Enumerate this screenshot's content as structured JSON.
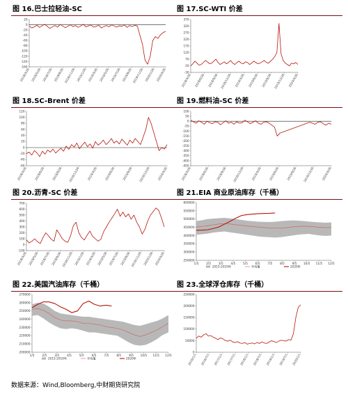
{
  "source": "数据来源：Wind,Bloomberg,中财期货研究院",
  "chart_data": [
    {
      "id": "fig16",
      "type": "line",
      "title": "图 16.巴士拉轻油-SC",
      "y_ticks": [
        20,
        0,
        -20,
        -40,
        -60,
        -80,
        -100,
        -120,
        -140,
        -160
      ],
      "ylim": [
        -160,
        20
      ],
      "x_ticks": [
        "2018/3/26",
        "2018/5/26",
        "2018/7/26",
        "2018/9/26",
        "2018/11/26",
        "2019/1/26",
        "2019/3/26",
        "2019/5/26",
        "2019/7/26",
        "2019/9/26",
        "2019/11/26",
        "2020/1/26",
        "2020/3/26"
      ],
      "reference_line": 0,
      "series": [
        {
          "color": "#b5150b",
          "values": [
            -5,
            -12,
            -8,
            -2,
            -10,
            -4,
            2,
            -6,
            -14,
            -8,
            -3,
            -9,
            1,
            -5,
            -11,
            -6,
            0,
            -7,
            -3,
            -10,
            -5,
            2,
            -8,
            -4,
            -1,
            -9,
            -6,
            -2,
            -12,
            -7,
            -3,
            -8,
            0,
            -5,
            -9,
            -4,
            -6,
            -1,
            -10,
            -3,
            -7,
            -2,
            -5,
            -40,
            -75,
            -135,
            -150,
            -120,
            -60,
            -45,
            -52,
            -38,
            -30,
            -25
          ]
        }
      ]
    },
    {
      "id": "fig17",
      "type": "line",
      "title": "图 17.SC-WTI 价差",
      "y_ticks": [
        370,
        320,
        270,
        220,
        170,
        120,
        70,
        20,
        -30
      ],
      "ylim": [
        -30,
        370
      ],
      "x_ticks": [
        "2018/3/26",
        "2018/6/26",
        "2018/9/26",
        "2018/12/26",
        "2019/3/26",
        "2019/6/26",
        "2019/9/26",
        "2019/12/26",
        "2020/3/26"
      ],
      "series": [
        {
          "color": "#b5150b",
          "values": [
            20,
            35,
            55,
            40,
            25,
            30,
            45,
            60,
            50,
            35,
            40,
            55,
            70,
            45,
            30,
            40,
            50,
            35,
            45,
            60,
            40,
            30,
            45,
            55,
            40,
            35,
            50,
            45,
            30,
            40,
            55,
            45,
            35,
            40,
            50,
            60,
            45,
            40,
            55,
            70,
            90,
            120,
            340,
            110,
            60,
            40,
            30,
            20,
            40,
            35,
            45,
            30
          ]
        }
      ]
    },
    {
      "id": "fig18",
      "type": "line",
      "title": "图 18.SC-Brent 价差",
      "y_ticks": [
        120,
        100,
        80,
        60,
        40,
        20,
        0,
        -20,
        -40,
        -60
      ],
      "ylim": [
        -60,
        120
      ],
      "x_ticks": [
        "2018/3/26",
        "2018/6/26",
        "2018/9/26",
        "2018/12/26",
        "2019/3/26",
        "2019/6/26",
        "2019/9/26",
        "2019/12/26",
        "2020/3/26"
      ],
      "reference_line": 0,
      "series": [
        {
          "color": "#b5150b",
          "values": [
            -20,
            -15,
            -25,
            -10,
            -18,
            -30,
            -12,
            -22,
            -8,
            -15,
            -5,
            -18,
            -10,
            -2,
            -12,
            5,
            -6,
            10,
            2,
            15,
            -4,
            8,
            18,
            3,
            12,
            -2,
            20,
            8,
            15,
            25,
            10,
            18,
            30,
            15,
            22,
            12,
            28,
            18,
            8,
            25,
            15,
            30,
            20,
            10,
            35,
            60,
            100,
            80,
            50,
            20,
            -10,
            0,
            -5,
            10
          ]
        }
      ]
    },
    {
      "id": "fig19",
      "type": "line",
      "title": "图 19.燃料油-SC 价差",
      "y_ticks": [
        100,
        50,
        0,
        -50,
        -100,
        -150,
        -200,
        -250,
        -300,
        -350,
        -400,
        -450
      ],
      "ylim": [
        -450,
        100
      ],
      "x_ticks": [
        "2018/3/26",
        "2018/6/26",
        "2018/9/26",
        "2018/12/26",
        "2019/3/26",
        "2019/6/26",
        "2019/9/26",
        "2019/12/26",
        "2020/3/26"
      ],
      "reference_line": 0,
      "series": [
        {
          "color": "#b5150b",
          "values": [
            10,
            -5,
            -20,
            5,
            -10,
            -30,
            0,
            -15,
            -25,
            -5,
            -10,
            -35,
            -15,
            5,
            -20,
            -10,
            -30,
            -5,
            -20,
            -15,
            10,
            -5,
            -25,
            -10,
            5,
            -20,
            -30,
            -10,
            -5,
            -20,
            -40,
            -60,
            -150,
            -120,
            -110,
            -100,
            -90,
            -80,
            -70,
            -60,
            -50,
            -40,
            -30,
            -20,
            -10,
            -20,
            -30,
            -10,
            -5,
            -25,
            -40,
            -20,
            -30
          ]
        }
      ]
    },
    {
      "id": "fig20",
      "type": "line",
      "title": "图 20.沥青-SC 价差",
      "y_ticks": [
        700,
        600,
        500,
        400,
        300,
        200,
        100,
        0,
        -100
      ],
      "ylim": [
        -100,
        700
      ],
      "x_ticks": [
        "2018/3/26",
        "2018/5/26",
        "2018/7/26",
        "2018/9/26",
        "2018/11/26",
        "2019/1/26",
        "2019/3/26",
        "2019/5/26",
        "2019/7/26",
        "2019/9/26",
        "2019/11/26",
        "2020/1/26",
        "2020/3/26"
      ],
      "series": [
        {
          "color": "#b5150b",
          "values": [
            80,
            30,
            60,
            100,
            50,
            20,
            120,
            200,
            150,
            90,
            60,
            250,
            180,
            100,
            60,
            40,
            150,
            320,
            380,
            200,
            120,
            80,
            160,
            230,
            140,
            100,
            60,
            90,
            220,
            300,
            380,
            450,
            520,
            600,
            480,
            550,
            470,
            520,
            430,
            500,
            380,
            300,
            180,
            260,
            400,
            500,
            560,
            620,
            580,
            450,
            300
          ]
        }
      ]
    },
    {
      "id": "fig21",
      "type": "area_line",
      "title": "图 21.EIA 商业原油库存（千桶）",
      "y_ticks": [
        600000,
        550000,
        500000,
        450000,
        400000,
        350000,
        300000,
        250000
      ],
      "ylim": [
        250000,
        600000
      ],
      "x_ticks": [
        "1/5",
        "2/5",
        "3/5",
        "4/5",
        "5/5",
        "6/5",
        "7/5",
        "8/5",
        "9/5",
        "10/5",
        "11/5",
        "12/5"
      ],
      "band_max": [
        488000,
        493000,
        500000,
        503000,
        505000,
        507000,
        504000,
        500000,
        495000,
        490000,
        487000,
        484000,
        483000,
        482000,
        484000,
        487000,
        490000,
        492000,
        491000,
        488000,
        485000,
        482000,
        480000,
        478000,
        480000
      ],
      "band_min": [
        405000,
        408000,
        412000,
        418000,
        422000,
        425000,
        420000,
        415000,
        410000,
        405000,
        400000,
        395000,
        392000,
        390000,
        388000,
        390000,
        395000,
        400000,
        405000,
        408000,
        410000,
        405000,
        400000,
        398000,
        400000
      ],
      "legend": [
        {
          "label": "2015-2019年",
          "kind": "band"
        },
        {
          "label": "平均值",
          "kind": "line"
        },
        {
          "label": "2020年",
          "kind": "line"
        }
      ],
      "series": [
        {
          "name": "平均值",
          "color": "#d25a5a",
          "values": [
            452000,
            455000,
            460000,
            465000,
            470000,
            472000,
            470000,
            466000,
            462000,
            458000,
            455000,
            452000,
            449000,
            446000,
            445000,
            446000,
            448000,
            452000,
            455000,
            457000,
            456000,
            453000,
            450000,
            448000,
            449000
          ]
        },
        {
          "name": "2020年",
          "color": "#b5150b",
          "values": [
            432000,
            433000,
            435000,
            443000,
            452000,
            469000,
            486000,
            505000,
            521000,
            527000,
            530000,
            533000,
            534000,
            535000,
            537000
          ]
        }
      ]
    },
    {
      "id": "fig22",
      "type": "area_line",
      "title": "图 22.美国汽油库存（千桶）",
      "y_ticks": [
        270000,
        260000,
        250000,
        240000,
        230000,
        220000,
        210000,
        200000
      ],
      "ylim": [
        200000,
        270000
      ],
      "x_ticks": [
        "1/5",
        "2/5",
        "3/5",
        "4/5",
        "5/5",
        "6/5",
        "7/5",
        "8/5",
        "9/5",
        "10/5",
        "11/5",
        "12/5"
      ],
      "band_max": [
        258000,
        260000,
        259000,
        255000,
        250000,
        247000,
        246000,
        245000,
        244000,
        243000,
        243000,
        242000,
        241000,
        240000,
        239000,
        238000,
        237000,
        235000,
        233000,
        232000,
        234000,
        236000,
        238000,
        241000,
        245000
      ],
      "band_min": [
        244000,
        245000,
        241000,
        236000,
        232000,
        229000,
        228000,
        229000,
        228000,
        226000,
        224000,
        224000,
        223000,
        222000,
        221000,
        220000,
        216000,
        212000,
        209000,
        208000,
        209000,
        212000,
        216000,
        221000,
        224000
      ],
      "legend": [
        {
          "label": "2015-2019年",
          "kind": "band"
        },
        {
          "label": "平均值",
          "kind": "line"
        },
        {
          "label": "2020年",
          "kind": "line"
        }
      ],
      "series": [
        {
          "name": "平均值",
          "color": "#d25a5a",
          "values": [
            252000,
            253000,
            251000,
            247000,
            242000,
            239000,
            238000,
            238000,
            237000,
            235000,
            235000,
            234000,
            233000,
            231000,
            230000,
            229000,
            227000,
            224000,
            221000,
            219000,
            221000,
            224000,
            227000,
            231000,
            235000
          ]
        },
        {
          "name": "2020年",
          "color": "#b5150b",
          "values": [
            254000,
            258000,
            261000,
            261000,
            259000,
            255000,
            252000,
            248000,
            250000,
            259000,
            262000,
            258000,
            256000,
            257000,
            256000
          ]
        }
      ]
    },
    {
      "id": "fig23",
      "type": "line",
      "title": "图 23.全球浮仓库存（千桶）",
      "y_ticks": [
        250000,
        200000,
        150000,
        100000,
        50000,
        0
      ],
      "ylim": [
        0,
        250000
      ],
      "x_ticks": [
        "2016/1/1",
        "2016/7/1",
        "2017/1/1",
        "2017/7/1",
        "2018/1/1",
        "2018/7/1",
        "2019/1/1",
        "2019/7/1",
        "2020/1/1"
      ],
      "series": [
        {
          "color": "#b5150b",
          "values": [
            60000,
            70000,
            65000,
            75000,
            80000,
            70000,
            72000,
            65000,
            60000,
            55000,
            62000,
            58000,
            50000,
            48000,
            52000,
            45000,
            42000,
            46000,
            40000,
            38000,
            42000,
            35000,
            38000,
            40000,
            36000,
            42000,
            38000,
            45000,
            40000,
            38000,
            44000,
            50000,
            46000,
            42000,
            48000,
            52000,
            50000,
            48000,
            55000,
            52000,
            80000,
            150000,
            195000,
            205000
          ]
        }
      ]
    }
  ]
}
